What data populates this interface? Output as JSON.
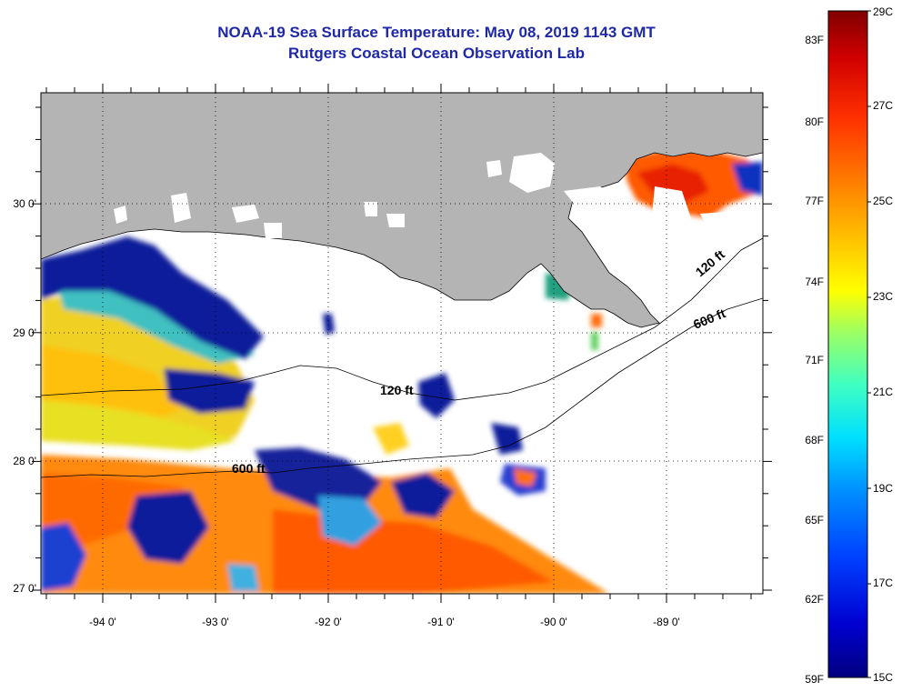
{
  "title": {
    "line1": "NOAA-19 Sea Surface Temperature:  May 08, 2019 1143 GMT",
    "line2": "Rutgers Coastal Ocean Observation Lab"
  },
  "map": {
    "lon_range": [
      -94.5,
      -88.2
    ],
    "lat_range": [
      26.95,
      30.87
    ],
    "lon_ticks": [
      "-94 0'",
      "-93 0'",
      "-92 0'",
      "-91 0'",
      "-90 0'",
      "-89 0'"
    ],
    "lat_ticks": [
      "30 0'",
      "29 0'",
      "28 0'",
      "27 0'"
    ],
    "land_color": "#b4b4b4",
    "cloud_color": "#ffffff",
    "grid": "dotted",
    "contours": [
      {
        "label": "120 ft"
      },
      {
        "label": "600 ft"
      }
    ]
  },
  "colorbar": {
    "celsius_labels": [
      "29C",
      "27C",
      "25C",
      "23C",
      "21C",
      "19C",
      "17C",
      "15C"
    ],
    "fahrenheit_labels": [
      "83F",
      "80F",
      "77F",
      "74F",
      "71F",
      "68F",
      "65F",
      "62F",
      "59F"
    ],
    "range_c": [
      15,
      29
    ],
    "colors": [
      "#000080",
      "#0000d0",
      "#0040ff",
      "#0090ff",
      "#00e0ff",
      "#40ffc0",
      "#a0ff60",
      "#ffff00",
      "#ffc000",
      "#ff8000",
      "#ff3000",
      "#d00000",
      "#800000"
    ]
  }
}
